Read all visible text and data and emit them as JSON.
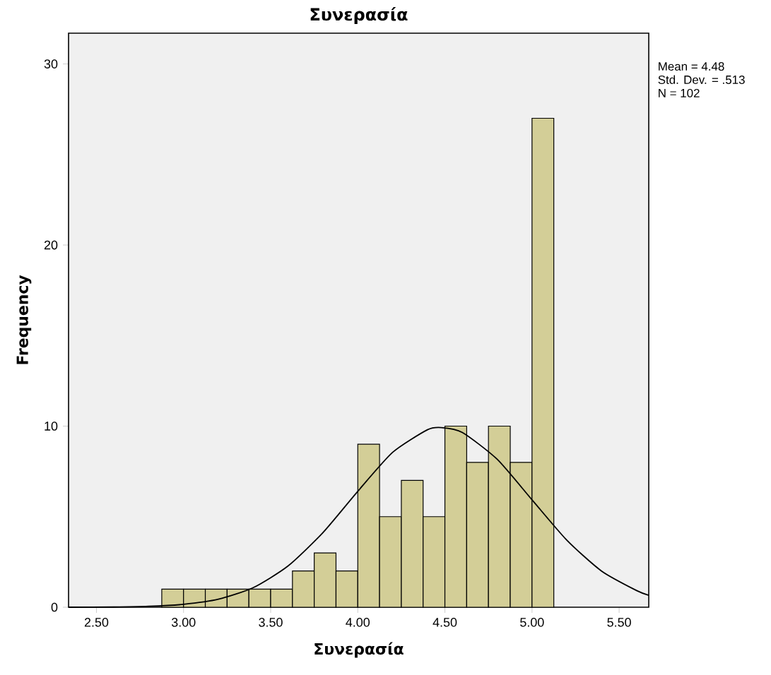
{
  "chart_data": {
    "type": "histogram",
    "title": "Συνερασία",
    "xlabel": "Συνερασία",
    "ylabel": "Frequency",
    "xlim": [
      2.34,
      5.67
    ],
    "ylim": [
      0,
      31.7
    ],
    "xticks": [
      {
        "value": 2.5,
        "label": "2.50"
      },
      {
        "value": 3.0,
        "label": "3.00"
      },
      {
        "value": 3.5,
        "label": "3.50"
      },
      {
        "value": 4.0,
        "label": "4.00"
      },
      {
        "value": 4.5,
        "label": "4.50"
      },
      {
        "value": 5.0,
        "label": "5.00"
      },
      {
        "value": 5.5,
        "label": "5.50"
      }
    ],
    "yticks": [
      0,
      10,
      20,
      30
    ],
    "series": [
      {
        "color": "#d3ce97",
        "bins": [
          2.875,
          3.0,
          3.125,
          3.25,
          3.375,
          3.5,
          3.625,
          3.75,
          3.875,
          4.0,
          4.125,
          4.25,
          4.375,
          4.5,
          4.625,
          4.75,
          4.875,
          5.0,
          5.125
        ],
        "values": [
          1,
          1,
          1,
          1,
          1,
          1,
          2,
          3,
          2,
          9,
          5,
          7,
          5,
          10,
          8,
          10,
          8,
          27
        ]
      },
      {
        "type": "line",
        "color": "#000000",
        "x": [
          2.34,
          2.6,
          2.8,
          3.0,
          3.2,
          3.4,
          3.6,
          3.8,
          4.0,
          4.2,
          4.4,
          4.48,
          4.6,
          4.8,
          5.0,
          5.2,
          5.4,
          5.6,
          5.67
        ],
        "values": [
          0,
          0.01,
          0.05,
          0.16,
          0.44,
          1.08,
          2.28,
          4.12,
          6.4,
          8.55,
          9.8,
          9.92,
          9.65,
          8.17,
          5.93,
          3.7,
          1.99,
          0.92,
          0.66
        ]
      }
    ],
    "annotations": [
      "Mean = 4.48",
      "Std. Dev. = .513",
      "N = 102"
    ],
    "grid": false
  }
}
